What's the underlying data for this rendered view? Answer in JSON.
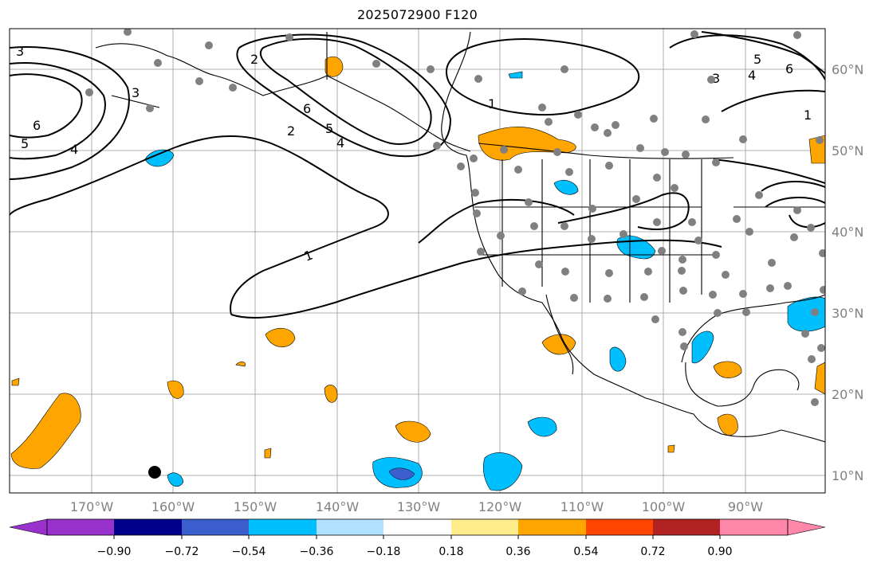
{
  "title": "2025072900 F120",
  "map": {
    "lon_labels": [
      "170°W",
      "160°W",
      "150°W",
      "140°W",
      "130°W",
      "120°W",
      "110°W",
      "100°W",
      "90°W"
    ],
    "lat_labels": [
      "60°N",
      "50°N",
      "40°N",
      "30°N",
      "20°N",
      "10°N"
    ],
    "contour_labels": [
      "1",
      "1",
      "1",
      "2",
      "2",
      "3",
      "3",
      "3",
      "4",
      "4",
      "4",
      "5",
      "5",
      "5",
      "6",
      "6",
      "6"
    ]
  },
  "colorbar": {
    "tick_labels": [
      "−0.90",
      "−0.72",
      "−0.54",
      "−0.36",
      "−0.18",
      "0.18",
      "0.36",
      "0.54",
      "0.72",
      "0.90"
    ],
    "colors": [
      "#9932cc",
      "#00008b",
      "#3a5fcd",
      "#00bfff",
      "#b0e2ff",
      "#ffffff",
      "#ffec8b",
      "#ffa500",
      "#ff4500",
      "#b22222",
      "#ff88aa"
    ]
  }
}
